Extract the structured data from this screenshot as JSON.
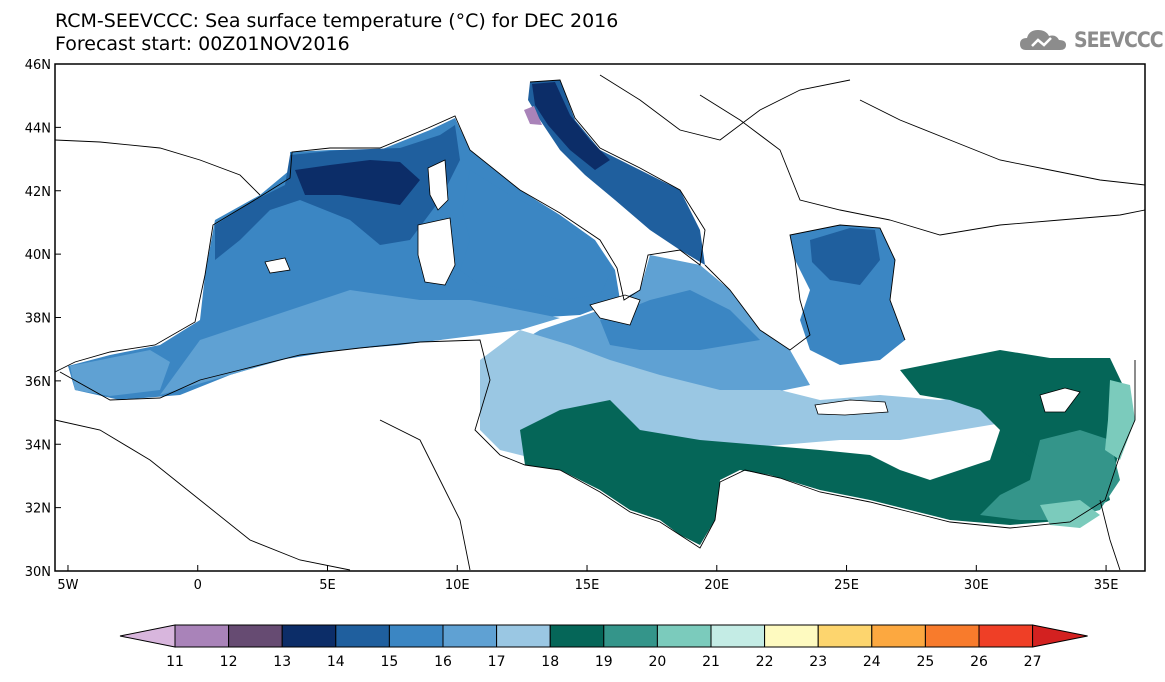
{
  "title": {
    "line1": "RCM-SEEVCCC: Sea surface temperature (°C) for DEC 2016",
    "line2": "Forecast start: 00Z01NOV2016"
  },
  "logo": {
    "text": "SEEVCCC",
    "icon": "cloud-logo-icon"
  },
  "map": {
    "lon_range": [
      -5.5,
      36.5
    ],
    "lat_range": [
      30,
      46
    ],
    "x_ticks": [
      "5W",
      "0",
      "5E",
      "10E",
      "15E",
      "20E",
      "25E",
      "30E",
      "35E"
    ],
    "x_tick_values": [
      -5,
      0,
      5,
      10,
      15,
      20,
      25,
      30,
      35
    ],
    "y_ticks": [
      "30N",
      "32N",
      "34N",
      "36N",
      "38N",
      "40N",
      "42N",
      "44N",
      "46N"
    ],
    "y_tick_values": [
      30,
      32,
      34,
      36,
      38,
      40,
      42,
      44,
      46
    ],
    "land_color": "#ffffff",
    "coast_color": "#000000"
  },
  "colorbar": {
    "labels": [
      "11",
      "12",
      "13",
      "14",
      "15",
      "16",
      "17",
      "18",
      "19",
      "20",
      "21",
      "22",
      "23",
      "24",
      "25",
      "26",
      "27"
    ],
    "colors": [
      "#d8b6dd",
      "#a983b9",
      "#664b72",
      "#0c2d68",
      "#1f5f9e",
      "#3b86c3",
      "#5fa1d3",
      "#9ac7e3",
      "#056658",
      "#34958a",
      "#7bcbbc",
      "#c4ece5",
      "#fefac0",
      "#fdd56e",
      "#fca840",
      "#f87b2c",
      "#ef3f26",
      "#d32120"
    ]
  }
}
